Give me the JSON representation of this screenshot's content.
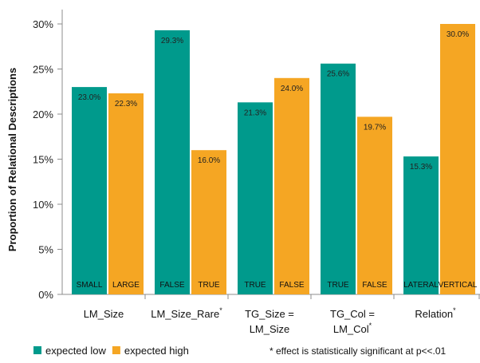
{
  "chart_data": {
    "type": "bar",
    "ylabel": "Proportion  of Relational Descriptions",
    "ylim": [
      0,
      30
    ],
    "yticks": [
      "0%",
      "5%",
      "10%",
      "15%",
      "20%",
      "25%",
      "30%"
    ],
    "grid": false,
    "legend_position": "bottom-left",
    "groups": [
      {
        "name": "LM_Size",
        "sup": "",
        "bars": [
          {
            "cat": "SMALL",
            "series": "expected low",
            "value": 23.0,
            "label": "23.0%"
          },
          {
            "cat": "LARGE",
            "series": "expected high",
            "value": 22.3,
            "label": "22.3%"
          }
        ]
      },
      {
        "name": "LM_Size_Rare",
        "sup": "*",
        "bars": [
          {
            "cat": "FALSE",
            "series": "expected low",
            "value": 29.3,
            "label": "29.3%"
          },
          {
            "cat": "TRUE",
            "series": "expected high",
            "value": 16.0,
            "label": "16.0%"
          }
        ]
      },
      {
        "name": "TG_Size =\nLM_Size",
        "sup": "",
        "bars": [
          {
            "cat": "TRUE",
            "series": "expected low",
            "value": 21.3,
            "label": "21.3%"
          },
          {
            "cat": "FALSE",
            "series": "expected high",
            "value": 24.0,
            "label": "24.0%"
          }
        ]
      },
      {
        "name": "TG_Col =\nLM_Col",
        "sup": "*",
        "bars": [
          {
            "cat": "TRUE",
            "series": "expected low",
            "value": 25.6,
            "label": "25.6%"
          },
          {
            "cat": "FALSE",
            "series": "expected high",
            "value": 19.7,
            "label": "19.7%"
          }
        ]
      },
      {
        "name": "Relation",
        "sup": "*",
        "bars": [
          {
            "cat": "LATERAL",
            "series": "expected low",
            "value": 15.3,
            "label": "15.3%"
          },
          {
            "cat": "VERTICAL",
            "series": "expected high",
            "value": 30.0,
            "label": "30.0%"
          }
        ]
      }
    ],
    "series": [
      {
        "name": "expected low",
        "color": "#009a8c"
      },
      {
        "name": "expected high",
        "color": "#f5a623"
      }
    ],
    "footnote": "* effect is statistically significant at p<<.01"
  }
}
